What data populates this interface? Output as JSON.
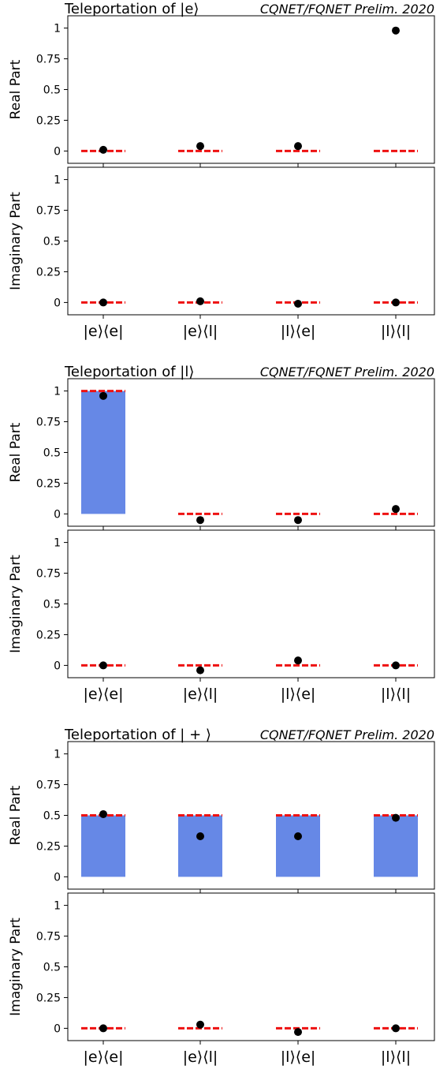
{
  "chart_data": [
    {
      "type": "bar",
      "title": "Teleportation of |e⟩",
      "credit": "CQNET/FQNET Prelim. 2020",
      "categories": [
        "|e⟩⟨e|",
        "|e⟩⟨l|",
        "|l⟩⟨e|",
        "|l⟩⟨l|"
      ],
      "yticks": [
        "0",
        "0.25",
        "0.5",
        "0.75",
        "1"
      ],
      "ylim": [
        -0.1,
        1.1
      ],
      "bar_color": "#6688e6",
      "ideal_color": "#ee1111",
      "panels": [
        {
          "ylabel": "Real Part",
          "ideal": [
            0,
            0,
            0,
            0
          ],
          "measured": [
            0.01,
            0.04,
            0.04,
            0.98
          ]
        },
        {
          "ylabel": "Imaginary Part",
          "ideal": [
            0,
            0,
            0,
            0
          ],
          "measured": [
            0.0,
            0.01,
            -0.01,
            0.0
          ]
        }
      ]
    },
    {
      "type": "bar",
      "title": "Teleportation of |l⟩",
      "credit": "CQNET/FQNET Prelim. 2020",
      "categories": [
        "|e⟩⟨e|",
        "|e⟩⟨l|",
        "|l⟩⟨e|",
        "|l⟩⟨l|"
      ],
      "yticks": [
        "0",
        "0.25",
        "0.5",
        "0.75",
        "1"
      ],
      "ylim": [
        -0.1,
        1.1
      ],
      "bar_color": "#6688e6",
      "ideal_color": "#ee1111",
      "panels": [
        {
          "ylabel": "Real Part",
          "ideal": [
            1,
            0,
            0,
            0
          ],
          "measured": [
            0.96,
            -0.05,
            -0.05,
            0.04
          ]
        },
        {
          "ylabel": "Imaginary Part",
          "ideal": [
            0,
            0,
            0,
            0
          ],
          "measured": [
            0.0,
            -0.04,
            0.04,
            0.0
          ]
        }
      ]
    },
    {
      "type": "bar",
      "title": "Teleportation of | + ⟩",
      "credit": "CQNET/FQNET Prelim. 2020",
      "categories": [
        "|e⟩⟨e|",
        "|e⟩⟨l|",
        "|l⟩⟨e|",
        "|l⟩⟨l|"
      ],
      "yticks": [
        "0",
        "0.25",
        "0.5",
        "0.75",
        "1"
      ],
      "ylim": [
        -0.1,
        1.1
      ],
      "bar_color": "#6688e6",
      "ideal_color": "#ee1111",
      "panels": [
        {
          "ylabel": "Real Part",
          "ideal": [
            0.5,
            0.5,
            0.5,
            0.5
          ],
          "measured": [
            0.51,
            0.33,
            0.33,
            0.48
          ]
        },
        {
          "ylabel": "Imaginary Part",
          "ideal": [
            0,
            0,
            0,
            0
          ],
          "measured": [
            0.0,
            0.03,
            -0.03,
            0.0
          ]
        }
      ]
    }
  ]
}
